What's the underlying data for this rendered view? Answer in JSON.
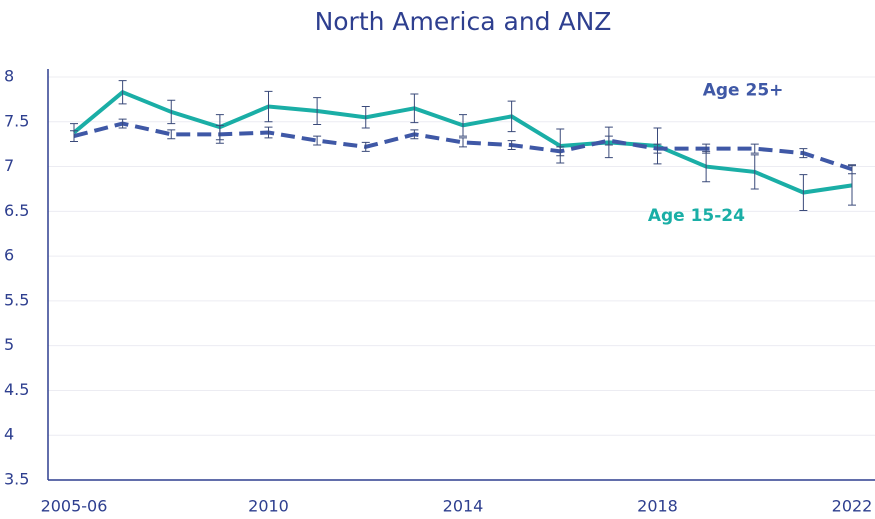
{
  "chart_data": {
    "type": "line",
    "title": "North America and ANZ",
    "categories": [
      "2005-06",
      null,
      null,
      null,
      "2010",
      null,
      null,
      null,
      "2014",
      null,
      null,
      null,
      "2018",
      null,
      null,
      null,
      "2022"
    ],
    "series": [
      {
        "name": "Age 15-24",
        "color": "#1aaea6",
        "linestyle": "solid",
        "label_position": [
          0.8,
          6.45
        ],
        "values": [
          7.38,
          7.83,
          7.61,
          7.44,
          7.67,
          7.62,
          7.55,
          7.65,
          7.46,
          7.56,
          7.23,
          7.27,
          7.23,
          7.0,
          6.94,
          6.71,
          6.79
        ],
        "errors": [
          0.1,
          0.13,
          0.13,
          0.14,
          0.17,
          0.15,
          0.12,
          0.16,
          0.12,
          0.17,
          0.19,
          0.17,
          0.2,
          0.17,
          0.19,
          0.2,
          0.22
        ]
      },
      {
        "name": "Age 25+",
        "color": "#3f58a6",
        "linestyle": "dashed",
        "label_position": [
          0.86,
          7.85
        ],
        "values": [
          7.34,
          7.48,
          7.36,
          7.36,
          7.38,
          7.29,
          7.22,
          7.36,
          7.27,
          7.24,
          7.17,
          7.29,
          7.2,
          7.2,
          7.2,
          7.15,
          6.97
        ],
        "errors": [
          0.06,
          0.05,
          0.05,
          0.1,
          0.06,
          0.05,
          0.05,
          0.05,
          0.05,
          0.05,
          0.05,
          0.05,
          0.05,
          0.05,
          0.05,
          0.05,
          0.05
        ]
      }
    ],
    "error_color": "#3a4a7a",
    "ylim": [
      3.5,
      8
    ],
    "yticks": [
      3.5,
      4,
      4.5,
      5,
      5.5,
      6,
      6.5,
      7,
      7.5,
      8
    ],
    "grid": true
  }
}
